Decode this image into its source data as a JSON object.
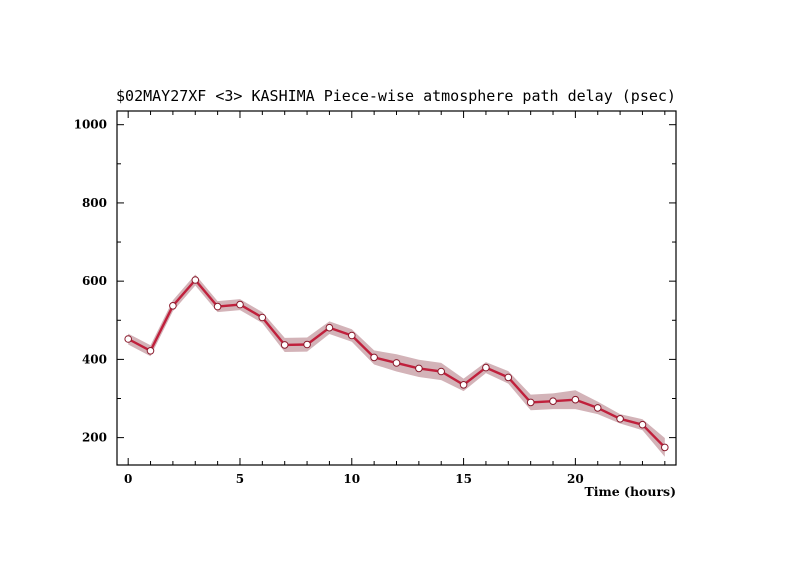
{
  "chart_data": {
    "type": "line",
    "title": "$02MAY27XF <3>  KASHIMA   Piece-wise atmosphere path delay (psec)",
    "xlabel": "Time (hours)",
    "ylabel": "",
    "xlim": [
      -0.5,
      24.5
    ],
    "ylim": [
      130,
      1035
    ],
    "x_ticks": [
      0,
      5,
      10,
      15,
      20
    ],
    "y_ticks": [
      200,
      400,
      600,
      800,
      1000
    ],
    "grid": false,
    "legend": "none",
    "colors": {
      "line": "#c0203c",
      "band": "#d3b3b8",
      "marker_fill": "#ffffff",
      "marker_stroke": "#8a1a2c"
    },
    "series": [
      {
        "x": [
          0,
          1,
          2,
          3,
          4,
          5,
          6,
          7,
          8,
          9,
          10,
          11,
          12,
          13,
          14,
          15,
          16,
          17,
          18,
          19,
          20,
          21,
          22,
          23,
          24
        ],
        "values": [
          452,
          422,
          537,
          603,
          535,
          540,
          507,
          437,
          438,
          481,
          461,
          405,
          391,
          377,
          369,
          335,
          379,
          354,
          290,
          293,
          297,
          276,
          248,
          233,
          175
        ],
        "error": [
          14,
          14,
          14,
          14,
          14,
          14,
          14,
          18,
          18,
          16,
          16,
          18,
          22,
          22,
          22,
          16,
          14,
          16,
          20,
          20,
          24,
          16,
          12,
          14,
          24
        ]
      }
    ]
  }
}
